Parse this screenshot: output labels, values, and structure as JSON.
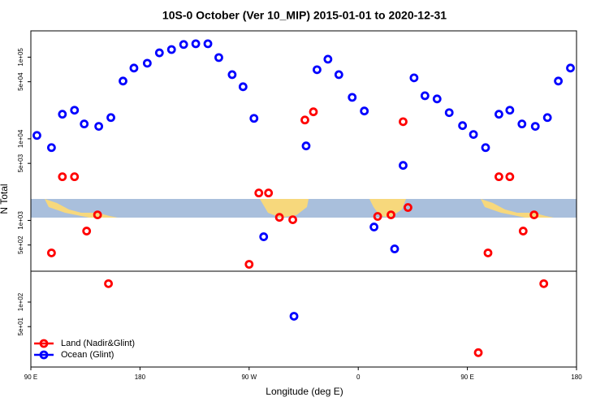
{
  "chart_data": {
    "type": "scatter",
    "title": "10S-0 October (Ver 10_MIP)   2015-01-01 to 2020-12-31",
    "x_label": "Longitude (deg E)",
    "y_label": "N Total",
    "log_y": true,
    "xlim": [
      90,
      540
    ],
    "ylim": [
      16,
      210000
    ],
    "xticks": [
      {
        "value": 90,
        "label": "90 E"
      },
      {
        "value": 180,
        "label": "180"
      },
      {
        "value": 270,
        "label": "90 W"
      },
      {
        "value": 360,
        "label": "0"
      },
      {
        "value": 450,
        "label": "90 E"
      },
      {
        "value": 540,
        "label": "180"
      }
    ],
    "yticks": [
      {
        "value": 100000,
        "label": "1e+05"
      },
      {
        "value": 50000,
        "label": "5e+04"
      },
      {
        "value": 10000,
        "label": "1e+04"
      },
      {
        "value": 5000,
        "label": "5e+03"
      },
      {
        "value": 1000,
        "label": "1e+03"
      },
      {
        "value": 500,
        "label": "5e+02"
      },
      {
        "value": 100,
        "label": "1e+02"
      },
      {
        "value": 50,
        "label": "5e+01"
      }
    ],
    "legend": "bottom-left",
    "series": [
      {
        "name": "Land (Nadir&Glint)",
        "color": "#ff0000",
        "x": [
          107,
          116,
          126,
          136,
          145,
          154,
          270,
          278,
          286,
          295,
          306,
          316,
          323,
          376,
          387,
          397,
          401,
          459,
          467,
          476,
          485,
          496,
          505,
          513
        ],
        "values": [
          400,
          3430,
          3430,
          741,
          1170,
          168,
          290,
          2170,
          2170,
          1090,
          1020,
          17000,
          21400,
          1120,
          1170,
          16200,
          1440,
          24,
          400,
          3430,
          3430,
          741,
          1170,
          168
        ]
      },
      {
        "name": "Ocean (Glint)",
        "color": "#0000ff",
        "x": [
          95,
          107,
          116,
          126,
          134,
          146,
          156,
          166,
          175,
          186,
          196,
          206,
          216,
          226,
          236,
          245,
          256,
          265,
          274,
          282,
          307,
          317,
          326,
          335,
          344,
          355,
          365,
          373,
          390,
          397,
          406,
          415,
          425,
          435,
          446,
          455,
          465,
          476,
          485,
          495,
          506,
          516,
          525,
          535
        ],
        "values": [
          11000,
          7800,
          20000,
          22400,
          15200,
          14200,
          18200,
          51000,
          73500,
          84300,
          113000,
          124000,
          143000,
          146000,
          146000,
          98900,
          61100,
          43400,
          17800,
          631,
          67,
          8180,
          70200,
          94400,
          61100,
          32200,
          21900,
          831,
          448,
          4720,
          55800,
          33700,
          30800,
          20900,
          14500,
          11300,
          7800,
          20000,
          22400,
          15200,
          14200,
          18200,
          51000,
          73500
        ]
      }
    ]
  }
}
